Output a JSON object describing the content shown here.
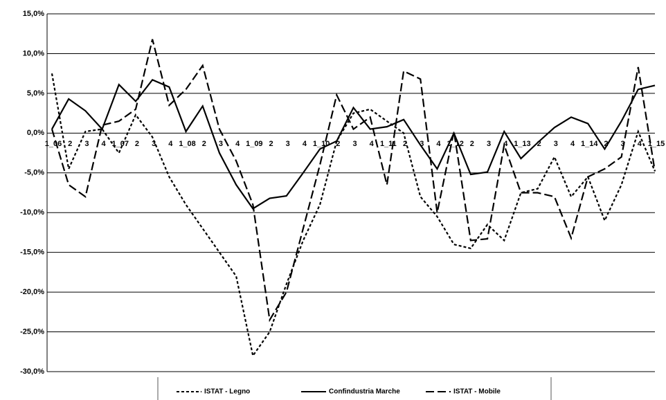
{
  "chart_data": {
    "type": "line",
    "categories": [
      "1_06",
      "2",
      "3",
      "4",
      "1_07",
      "2",
      "3",
      "4",
      "1_08",
      "2",
      "3",
      "4",
      "1_09",
      "2",
      "3",
      "4",
      "1_10",
      "2",
      "3",
      "4",
      "1_11",
      "2",
      "3",
      "4",
      "1_12",
      "2",
      "3",
      "4",
      "1_13",
      "2",
      "3",
      "4",
      "1_14",
      "2",
      "3",
      "4",
      "1_15"
    ],
    "series": [
      {
        "name": "ISTAT - Legno",
        "color": "#000000",
        "dash": "4,3",
        "values": [
          7.5,
          -4.5,
          0.2,
          0.5,
          -2.5,
          2.3,
          -0.5,
          -5.5,
          -9,
          -12,
          -15,
          -18,
          -28,
          -25,
          -19,
          -13.5,
          -9,
          -1,
          2.5,
          3,
          1.5,
          0,
          -8,
          -10.5,
          -14,
          -14.5,
          -11.5,
          -13.5,
          -7.5,
          -7,
          -3,
          -8,
          -5.5,
          -11,
          -6.5,
          0.2,
          -4.8
        ]
      },
      {
        "name": "Confindustria Marche",
        "color": "#000000",
        "dash": "none",
        "values": [
          0.5,
          4.3,
          2.8,
          0.5,
          6.1,
          4,
          6.7,
          5.8,
          0.2,
          3.4,
          -2.5,
          -6.5,
          -9.5,
          -8.2,
          -7.9,
          -5,
          -2,
          -1,
          3.2,
          0.5,
          0.8,
          1.7,
          -1.5,
          -4.5,
          0,
          -5.2,
          -4.9,
          0.2,
          -3.2,
          -1.2,
          0.7,
          2,
          1.2,
          -2,
          1.5,
          5.5,
          6
        ]
      },
      {
        "name": "ISTAT - Mobile",
        "color": "#000000",
        "dash": "12,5",
        "values": [
          0.5,
          -6.5,
          -8,
          1,
          1.5,
          3,
          11.8,
          3.5,
          5.5,
          8.5,
          0.5,
          -3.5,
          -9,
          -23.5,
          -20,
          -12,
          -4,
          4.8,
          0.5,
          2,
          -6.5,
          7.8,
          6.8,
          -10,
          0.2,
          -13.5,
          -13.3,
          -1.5,
          -7.5,
          -7.5,
          -8,
          -13.2,
          -5.5,
          -4.5,
          -3,
          8.3,
          -4.8
        ]
      }
    ],
    "ylim": [
      -30,
      15
    ],
    "yticks": [
      {
        "value": -30,
        "label": "-30,0%"
      },
      {
        "value": -25,
        "label": "-25,0%"
      },
      {
        "value": -20,
        "label": "-20,0%"
      },
      {
        "value": -15,
        "label": "-15,0%"
      },
      {
        "value": -10,
        "label": "-10,0%"
      },
      {
        "value": -5,
        "label": "-5,0%"
      },
      {
        "value": 0,
        "label": "0,0%"
      },
      {
        "value": 5,
        "label": "5,0%"
      },
      {
        "value": 10,
        "label": "10,0%"
      },
      {
        "value": 15,
        "label": "15,0%"
      }
    ],
    "grid": true
  }
}
